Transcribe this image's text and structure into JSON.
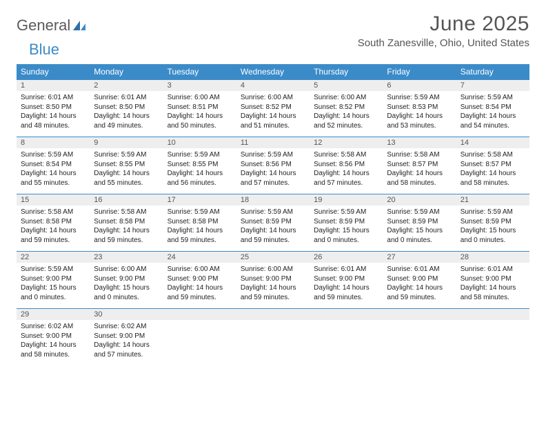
{
  "logo": {
    "text1": "General",
    "text2": "Blue"
  },
  "title": "June 2025",
  "location": "South Zanesville, Ohio, United States",
  "colors": {
    "header_bg": "#3b8bc9",
    "header_text": "#ffffff",
    "daynum_bg": "#eeeeee",
    "text": "#222222",
    "title_text": "#555555",
    "background": "#ffffff"
  },
  "typography": {
    "title_fontsize": 30,
    "location_fontsize": 15,
    "dayhead_fontsize": 12,
    "cell_fontsize": 10,
    "logo_fontsize": 22
  },
  "weekdays": [
    "Sunday",
    "Monday",
    "Tuesday",
    "Wednesday",
    "Thursday",
    "Friday",
    "Saturday"
  ],
  "weeks": [
    [
      {
        "n": "1",
        "sr": "Sunrise: 6:01 AM",
        "ss": "Sunset: 8:50 PM",
        "d1": "Daylight: 14 hours",
        "d2": "and 48 minutes."
      },
      {
        "n": "2",
        "sr": "Sunrise: 6:01 AM",
        "ss": "Sunset: 8:50 PM",
        "d1": "Daylight: 14 hours",
        "d2": "and 49 minutes."
      },
      {
        "n": "3",
        "sr": "Sunrise: 6:00 AM",
        "ss": "Sunset: 8:51 PM",
        "d1": "Daylight: 14 hours",
        "d2": "and 50 minutes."
      },
      {
        "n": "4",
        "sr": "Sunrise: 6:00 AM",
        "ss": "Sunset: 8:52 PM",
        "d1": "Daylight: 14 hours",
        "d2": "and 51 minutes."
      },
      {
        "n": "5",
        "sr": "Sunrise: 6:00 AM",
        "ss": "Sunset: 8:52 PM",
        "d1": "Daylight: 14 hours",
        "d2": "and 52 minutes."
      },
      {
        "n": "6",
        "sr": "Sunrise: 5:59 AM",
        "ss": "Sunset: 8:53 PM",
        "d1": "Daylight: 14 hours",
        "d2": "and 53 minutes."
      },
      {
        "n": "7",
        "sr": "Sunrise: 5:59 AM",
        "ss": "Sunset: 8:54 PM",
        "d1": "Daylight: 14 hours",
        "d2": "and 54 minutes."
      }
    ],
    [
      {
        "n": "8",
        "sr": "Sunrise: 5:59 AM",
        "ss": "Sunset: 8:54 PM",
        "d1": "Daylight: 14 hours",
        "d2": "and 55 minutes."
      },
      {
        "n": "9",
        "sr": "Sunrise: 5:59 AM",
        "ss": "Sunset: 8:55 PM",
        "d1": "Daylight: 14 hours",
        "d2": "and 55 minutes."
      },
      {
        "n": "10",
        "sr": "Sunrise: 5:59 AM",
        "ss": "Sunset: 8:55 PM",
        "d1": "Daylight: 14 hours",
        "d2": "and 56 minutes."
      },
      {
        "n": "11",
        "sr": "Sunrise: 5:59 AM",
        "ss": "Sunset: 8:56 PM",
        "d1": "Daylight: 14 hours",
        "d2": "and 57 minutes."
      },
      {
        "n": "12",
        "sr": "Sunrise: 5:58 AM",
        "ss": "Sunset: 8:56 PM",
        "d1": "Daylight: 14 hours",
        "d2": "and 57 minutes."
      },
      {
        "n": "13",
        "sr": "Sunrise: 5:58 AM",
        "ss": "Sunset: 8:57 PM",
        "d1": "Daylight: 14 hours",
        "d2": "and 58 minutes."
      },
      {
        "n": "14",
        "sr": "Sunrise: 5:58 AM",
        "ss": "Sunset: 8:57 PM",
        "d1": "Daylight: 14 hours",
        "d2": "and 58 minutes."
      }
    ],
    [
      {
        "n": "15",
        "sr": "Sunrise: 5:58 AM",
        "ss": "Sunset: 8:58 PM",
        "d1": "Daylight: 14 hours",
        "d2": "and 59 minutes."
      },
      {
        "n": "16",
        "sr": "Sunrise: 5:58 AM",
        "ss": "Sunset: 8:58 PM",
        "d1": "Daylight: 14 hours",
        "d2": "and 59 minutes."
      },
      {
        "n": "17",
        "sr": "Sunrise: 5:59 AM",
        "ss": "Sunset: 8:58 PM",
        "d1": "Daylight: 14 hours",
        "d2": "and 59 minutes."
      },
      {
        "n": "18",
        "sr": "Sunrise: 5:59 AM",
        "ss": "Sunset: 8:59 PM",
        "d1": "Daylight: 14 hours",
        "d2": "and 59 minutes."
      },
      {
        "n": "19",
        "sr": "Sunrise: 5:59 AM",
        "ss": "Sunset: 8:59 PM",
        "d1": "Daylight: 15 hours",
        "d2": "and 0 minutes."
      },
      {
        "n": "20",
        "sr": "Sunrise: 5:59 AM",
        "ss": "Sunset: 8:59 PM",
        "d1": "Daylight: 15 hours",
        "d2": "and 0 minutes."
      },
      {
        "n": "21",
        "sr": "Sunrise: 5:59 AM",
        "ss": "Sunset: 8:59 PM",
        "d1": "Daylight: 15 hours",
        "d2": "and 0 minutes."
      }
    ],
    [
      {
        "n": "22",
        "sr": "Sunrise: 5:59 AM",
        "ss": "Sunset: 9:00 PM",
        "d1": "Daylight: 15 hours",
        "d2": "and 0 minutes."
      },
      {
        "n": "23",
        "sr": "Sunrise: 6:00 AM",
        "ss": "Sunset: 9:00 PM",
        "d1": "Daylight: 15 hours",
        "d2": "and 0 minutes."
      },
      {
        "n": "24",
        "sr": "Sunrise: 6:00 AM",
        "ss": "Sunset: 9:00 PM",
        "d1": "Daylight: 14 hours",
        "d2": "and 59 minutes."
      },
      {
        "n": "25",
        "sr": "Sunrise: 6:00 AM",
        "ss": "Sunset: 9:00 PM",
        "d1": "Daylight: 14 hours",
        "d2": "and 59 minutes."
      },
      {
        "n": "26",
        "sr": "Sunrise: 6:01 AM",
        "ss": "Sunset: 9:00 PM",
        "d1": "Daylight: 14 hours",
        "d2": "and 59 minutes."
      },
      {
        "n": "27",
        "sr": "Sunrise: 6:01 AM",
        "ss": "Sunset: 9:00 PM",
        "d1": "Daylight: 14 hours",
        "d2": "and 59 minutes."
      },
      {
        "n": "28",
        "sr": "Sunrise: 6:01 AM",
        "ss": "Sunset: 9:00 PM",
        "d1": "Daylight: 14 hours",
        "d2": "and 58 minutes."
      }
    ],
    [
      {
        "n": "29",
        "sr": "Sunrise: 6:02 AM",
        "ss": "Sunset: 9:00 PM",
        "d1": "Daylight: 14 hours",
        "d2": "and 58 minutes."
      },
      {
        "n": "30",
        "sr": "Sunrise: 6:02 AM",
        "ss": "Sunset: 9:00 PM",
        "d1": "Daylight: 14 hours",
        "d2": "and 57 minutes."
      },
      {
        "n": "",
        "sr": "",
        "ss": "",
        "d1": "",
        "d2": ""
      },
      {
        "n": "",
        "sr": "",
        "ss": "",
        "d1": "",
        "d2": ""
      },
      {
        "n": "",
        "sr": "",
        "ss": "",
        "d1": "",
        "d2": ""
      },
      {
        "n": "",
        "sr": "",
        "ss": "",
        "d1": "",
        "d2": ""
      },
      {
        "n": "",
        "sr": "",
        "ss": "",
        "d1": "",
        "d2": ""
      }
    ]
  ]
}
